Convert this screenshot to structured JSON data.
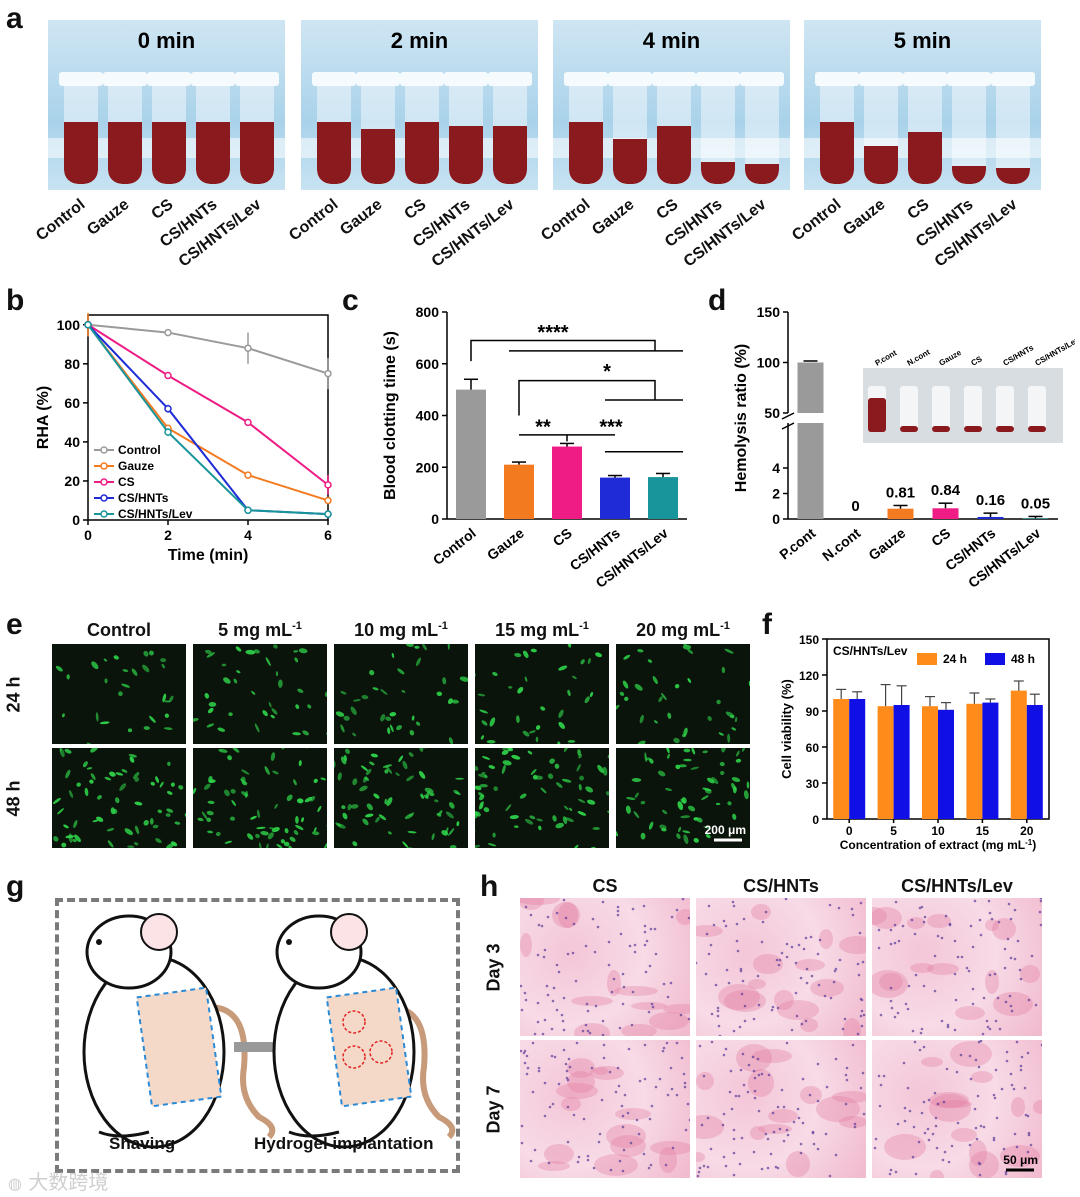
{
  "panel_letters": {
    "a": "a",
    "b": "b",
    "c": "c",
    "d": "d",
    "e": "e",
    "f": "f",
    "g": "g",
    "h": "h"
  },
  "panel_a": {
    "timepoints": [
      "0 min",
      "2 min",
      "4 min",
      "5 min"
    ],
    "tube_labels": [
      "Control",
      "Gauze",
      "CS",
      "CS/HNTs",
      "CS/HNTs/Lev"
    ],
    "blood_level_fraction": [
      [
        0.62,
        0.62,
        0.62,
        0.62,
        0.62
      ],
      [
        0.62,
        0.55,
        0.62,
        0.58,
        0.58
      ],
      [
        0.62,
        0.45,
        0.58,
        0.22,
        0.2
      ],
      [
        0.62,
        0.38,
        0.52,
        0.18,
        0.16
      ]
    ]
  },
  "panel_e": {
    "columns": [
      "Control",
      "5 mg mL",
      "10 mg mL",
      "15 mg mL",
      "20 mg mL"
    ],
    "superscript": "-1",
    "rows": [
      "24 h",
      "48 h"
    ],
    "scalebar": "200 μm"
  },
  "panel_g": {
    "left_caption": "Shaving",
    "right_caption": "Hydrogel implantation"
  },
  "panel_h": {
    "columns": [
      "CS",
      "CS/HNTs",
      "CS/HNTs/Lev"
    ],
    "rows": [
      "Day 3",
      "Day 7"
    ],
    "scalebar": "50 μm"
  },
  "watermark": "大数跨境",
  "colors": {
    "control": "#9a9a9a",
    "gauze": "#f47a20",
    "cs": "#ee1c84",
    "cshnts": "#1f2bd6",
    "cshntslev": "#18959a",
    "f24": "#ff8c1a",
    "f48": "#1010e6"
  },
  "chart_data": [
    {
      "id": "b",
      "type": "line",
      "xlabel": "Time (min)",
      "ylabel": "RHA (%)",
      "xlim": [
        0,
        6
      ],
      "ylim": [
        0,
        105
      ],
      "xticks": [
        0,
        2,
        4,
        6
      ],
      "yticks": [
        0,
        20,
        40,
        60,
        80,
        100
      ],
      "x": [
        0,
        2,
        4,
        6
      ],
      "series": [
        {
          "name": "Control",
          "values": [
            100,
            96,
            88,
            75
          ],
          "err": [
            0,
            0,
            8,
            8
          ]
        },
        {
          "name": "Gauze",
          "values": [
            100,
            47,
            23,
            10
          ],
          "err": [
            6,
            1,
            1,
            1
          ]
        },
        {
          "name": "CS",
          "values": [
            100,
            74,
            50,
            18
          ],
          "err": [
            0,
            1,
            1,
            5
          ]
        },
        {
          "name": "CS/HNTs",
          "values": [
            100,
            57,
            5,
            3
          ],
          "err": [
            0,
            2,
            1,
            0
          ]
        },
        {
          "name": "CS/HNTs/Lev",
          "values": [
            100,
            45,
            5,
            3
          ],
          "err": [
            0,
            2,
            1,
            0
          ]
        }
      ],
      "legend": "bottom-left"
    },
    {
      "id": "c",
      "type": "bar",
      "ylabel": "Blood clotting time (s)",
      "ylim": [
        0,
        800
      ],
      "yticks": [
        0,
        200,
        400,
        600,
        800
      ],
      "categories": [
        "Control",
        "Gauze",
        "CS",
        "CS/HNTs",
        "CS/HNTs/Lev"
      ],
      "values": [
        500,
        210,
        280,
        160,
        162
      ],
      "err": [
        40,
        10,
        12,
        8,
        14
      ],
      "significance": [
        "****",
        "*",
        "**",
        "***"
      ]
    },
    {
      "id": "d",
      "type": "bar",
      "ylabel": "Hemolysis ratio (%)",
      "yticks_lower": [
        0,
        2,
        4
      ],
      "yticks_upper": [
        50,
        100,
        150
      ],
      "categories": [
        "P.cont",
        "N.cont",
        "Gauze",
        "CS",
        "CS/HNTs",
        "CS/HNTs/Lev"
      ],
      "values": [
        100,
        0,
        0.81,
        0.84,
        0.16,
        0.05
      ],
      "err": [
        1.5,
        0,
        0.25,
        0.4,
        0.3,
        0.15
      ],
      "value_labels": [
        "",
        "0",
        "0.81",
        "0.84",
        "0.16",
        "0.05"
      ],
      "inset_labels": [
        "P.cont",
        "N.cont",
        "Gauze",
        "CS",
        "CS/HNTs",
        "CS/HNTs/Lev"
      ]
    },
    {
      "id": "f",
      "type": "bar",
      "title": "CS/HNTs/Lev",
      "xlabel": "Concentration of extract (mg mL",
      "xlabel_sup": "-1",
      "xlabel_end": ")",
      "ylabel": "Cell viability (%)",
      "ylim": [
        0,
        150
      ],
      "yticks": [
        0,
        30,
        60,
        90,
        120,
        150
      ],
      "categories": [
        "0",
        "5",
        "10",
        "15",
        "20"
      ],
      "series": [
        {
          "name": "24 h",
          "values": [
            100,
            94,
            94,
            96,
            107
          ],
          "err": [
            8,
            18,
            8,
            9,
            8
          ]
        },
        {
          "name": "48 h",
          "values": [
            100,
            95,
            91,
            97,
            95
          ],
          "err": [
            6,
            16,
            6,
            3,
            9
          ]
        }
      ],
      "legend": "top-right"
    }
  ]
}
